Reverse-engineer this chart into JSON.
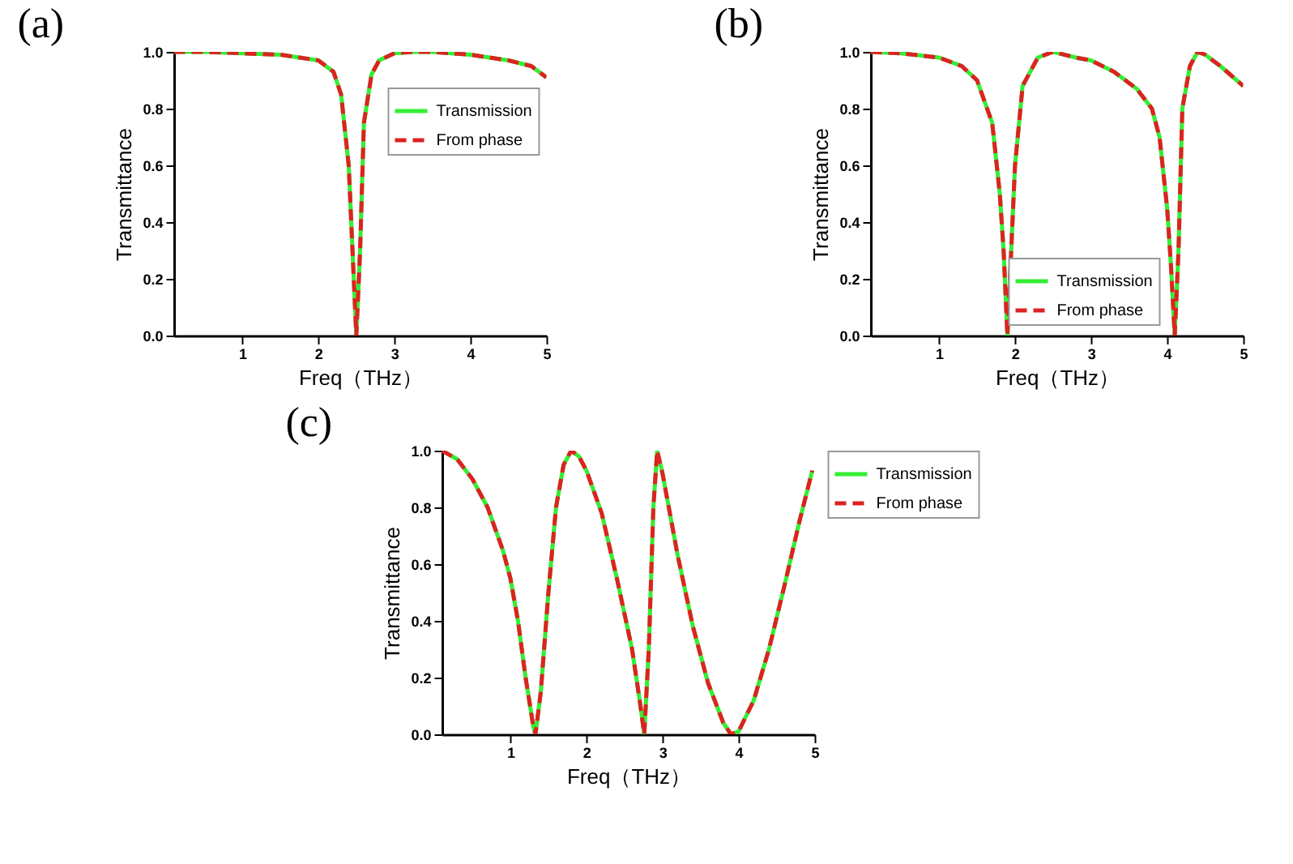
{
  "chart_data": [
    {
      "type": "line",
      "title": "(a)",
      "xlabel": "Freq（THz）",
      "ylabel": "Transmittance",
      "xlim": [
        0.1,
        5
      ],
      "ylim": [
        0,
        1
      ],
      "xticks": [
        1,
        2,
        3,
        4,
        5
      ],
      "yticks": [
        {
          "value": 0,
          "label": "0.0"
        },
        {
          "value": 0.2,
          "label": "0.2"
        },
        {
          "value": 0.4,
          "label": "0.4"
        },
        {
          "value": 0.6,
          "label": "0.6"
        },
        {
          "value": 0.8,
          "label": "0.8"
        },
        {
          "value": 1,
          "label": "1.0"
        }
      ],
      "grid": false,
      "legend": "top right",
      "x": [
        0.1,
        0.5,
        1,
        1.5,
        2,
        2.2,
        2.3,
        2.4,
        2.45,
        2.5,
        2.55,
        2.6,
        2.7,
        2.8,
        3,
        3.25,
        3.5,
        4,
        4.5,
        4.8,
        5
      ],
      "series": [
        {
          "name": "Transmission",
          "color": "#33ee33",
          "line_style": "solid",
          "values": [
            1.0,
            1.0,
            0.995,
            0.99,
            0.97,
            0.93,
            0.85,
            0.6,
            0.3,
            0.0,
            0.3,
            0.75,
            0.92,
            0.97,
            0.995,
            1.0,
            1.0,
            0.99,
            0.97,
            0.95,
            0.91
          ]
        },
        {
          "name": "From phase",
          "color": "#dd2222",
          "line_style": "dashed",
          "values": [
            1.0,
            1.0,
            0.995,
            0.99,
            0.97,
            0.93,
            0.85,
            0.6,
            0.3,
            0.0,
            0.3,
            0.75,
            0.92,
            0.97,
            0.995,
            1.0,
            1.0,
            0.99,
            0.97,
            0.95,
            0.91
          ]
        }
      ]
    },
    {
      "type": "line",
      "title": "(b)",
      "xlabel": "Freq（THz）",
      "ylabel": "Transmittance",
      "xlim": [
        0.1,
        5
      ],
      "ylim": [
        0,
        1
      ],
      "xticks": [
        1,
        2,
        3,
        4,
        5
      ],
      "yticks": [
        {
          "value": 0,
          "label": "0.0"
        },
        {
          "value": 0.2,
          "label": "0.2"
        },
        {
          "value": 0.4,
          "label": "0.4"
        },
        {
          "value": 0.6,
          "label": "0.6"
        },
        {
          "value": 0.8,
          "label": "0.8"
        },
        {
          "value": 1,
          "label": "1.0"
        }
      ],
      "grid": false,
      "legend": "bottom",
      "x": [
        0.1,
        0.5,
        1,
        1.3,
        1.5,
        1.7,
        1.8,
        1.85,
        1.9,
        1.95,
        2.0,
        2.1,
        2.3,
        2.5,
        2.8,
        3.0,
        3.3,
        3.6,
        3.8,
        3.9,
        4.0,
        4.05,
        4.1,
        4.15,
        4.2,
        4.3,
        4.4,
        4.5,
        4.7,
        5.0
      ],
      "series": [
        {
          "name": "Transmission",
          "color": "#33ee33",
          "line_style": "solid",
          "values": [
            1.0,
            0.995,
            0.98,
            0.95,
            0.9,
            0.75,
            0.5,
            0.3,
            0.0,
            0.3,
            0.6,
            0.88,
            0.98,
            1.0,
            0.98,
            0.97,
            0.93,
            0.87,
            0.8,
            0.7,
            0.45,
            0.25,
            0.0,
            0.3,
            0.8,
            0.95,
            1.0,
            0.99,
            0.95,
            0.88
          ]
        },
        {
          "name": "From phase",
          "color": "#dd2222",
          "line_style": "dashed",
          "values": [
            1.0,
            0.995,
            0.98,
            0.95,
            0.9,
            0.75,
            0.5,
            0.3,
            0.0,
            0.3,
            0.6,
            0.88,
            0.98,
            1.0,
            0.98,
            0.97,
            0.93,
            0.87,
            0.8,
            0.7,
            0.45,
            0.25,
            0.0,
            0.3,
            0.8,
            0.95,
            1.0,
            0.99,
            0.95,
            0.88
          ]
        }
      ]
    },
    {
      "type": "line",
      "title": "(c)",
      "xlabel": "Freq（THz）",
      "ylabel": "Transmittance",
      "xlim": [
        0.1,
        5
      ],
      "ylim": [
        0,
        1
      ],
      "xticks": [
        1,
        2,
        3,
        4,
        5
      ],
      "yticks": [
        {
          "value": 0,
          "label": "0.0"
        },
        {
          "value": 0.2,
          "label": "0.2"
        },
        {
          "value": 0.4,
          "label": "0.4"
        },
        {
          "value": 0.6,
          "label": "0.6"
        },
        {
          "value": 0.8,
          "label": "0.8"
        },
        {
          "value": 1,
          "label": "1.0"
        }
      ],
      "grid": false,
      "legend": "right",
      "x": [
        0.1,
        0.3,
        0.5,
        0.7,
        0.9,
        1.0,
        1.1,
        1.2,
        1.3,
        1.33,
        1.4,
        1.5,
        1.6,
        1.7,
        1.8,
        1.9,
        2.0,
        2.2,
        2.4,
        2.6,
        2.7,
        2.76,
        2.82,
        2.88,
        2.93,
        3.0,
        3.2,
        3.4,
        3.6,
        3.8,
        3.9,
        4.0,
        4.2,
        4.4,
        4.6,
        4.8,
        4.97
      ],
      "series": [
        {
          "name": "Transmission",
          "color": "#33ee33",
          "line_style": "solid",
          "values": [
            1.0,
            0.97,
            0.9,
            0.8,
            0.65,
            0.55,
            0.4,
            0.2,
            0.03,
            0.0,
            0.15,
            0.5,
            0.8,
            0.95,
            1.0,
            0.98,
            0.93,
            0.78,
            0.55,
            0.3,
            0.12,
            0.0,
            0.3,
            0.8,
            1.0,
            0.92,
            0.63,
            0.38,
            0.18,
            0.04,
            0.0,
            0.01,
            0.12,
            0.3,
            0.52,
            0.75,
            0.93
          ]
        },
        {
          "name": "From phase",
          "color": "#dd2222",
          "line_style": "dashed",
          "values": [
            1.0,
            0.97,
            0.9,
            0.8,
            0.65,
            0.55,
            0.4,
            0.2,
            0.03,
            0.0,
            0.15,
            0.5,
            0.8,
            0.95,
            1.0,
            0.98,
            0.93,
            0.78,
            0.55,
            0.3,
            0.12,
            0.0,
            0.3,
            0.8,
            1.0,
            0.92,
            0.63,
            0.38,
            0.18,
            0.04,
            0.0,
            0.01,
            0.12,
            0.3,
            0.52,
            0.75,
            0.93
          ]
        }
      ]
    }
  ]
}
